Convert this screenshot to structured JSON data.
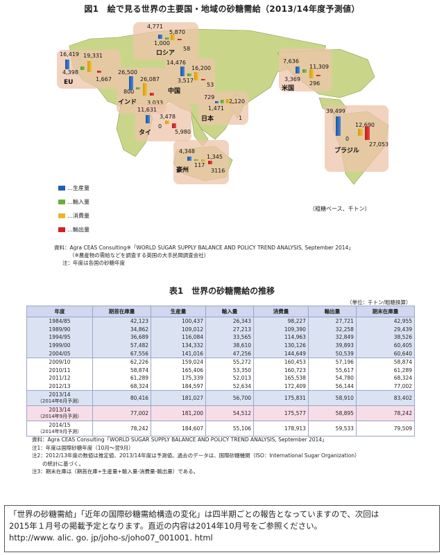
{
  "figure": {
    "title": "図1　絵で見る世界の主要国・地域の砂糖需給（2013/14年度予測値）",
    "unit_note": "（粗糖ベース、千トン）",
    "legend": [
      {
        "label": "…生産量",
        "color": "#1f5fb8"
      },
      {
        "label": "…輸入量",
        "color": "#6aae3c"
      },
      {
        "label": "…消費量",
        "color": "#f0b429"
      },
      {
        "label": "…輸出量",
        "color": "#d62020"
      }
    ],
    "regions": [
      {
        "name": "EU",
        "production": "16,419",
        "imports": "4,398",
        "consumption": "19,331",
        "exports": "1,667"
      },
      {
        "name": "ロシア",
        "production": "4,771",
        "imports": "1,000",
        "consumption": "5,870",
        "exports": "58"
      },
      {
        "name": "インド",
        "production": "26,500",
        "imports": "800",
        "consumption": "26,087",
        "exports": "3,033"
      },
      {
        "name": "中国",
        "production": "14,476",
        "imports": "3,517",
        "consumption": "16,200",
        "exports": "53"
      },
      {
        "name": "タイ",
        "production": "11,631",
        "imports": "0",
        "consumption": "3,478",
        "exports": "5,980"
      },
      {
        "name": "日本",
        "production": "729",
        "imports": "1,471",
        "consumption": "2,120",
        "exports": "1"
      },
      {
        "name": "豪州",
        "production": "4,348",
        "imports": "117",
        "consumption": "1,345",
        "exports": "3116"
      },
      {
        "name": "米国",
        "production": "7,636",
        "imports": "3,369",
        "consumption": "11,309",
        "exports": "296"
      },
      {
        "name": "ブラジル",
        "production": "39,499",
        "imports": "0",
        "consumption": "12,690",
        "exports": "27,053"
      }
    ],
    "source_lines": [
      "資料：Agra CEAS Consulting※「WORLD SUGAR SUPPLY BALANCE AND POLICY TREND ANALYSIS, September 2014」",
      "（※農産物の需給などを調査する英国の大手民間調査会社）",
      "注：年度は各国の砂糖年度"
    ]
  },
  "table": {
    "title": "表1　世界の砂糖需給の推移",
    "unit": "（単位：千トン/粗糖換算）",
    "headers": [
      "年度",
      "期首在庫量",
      "生産量",
      "輸入量",
      "消費量",
      "輸出量",
      "期末在庫量"
    ],
    "rows": [
      {
        "year": "1984/85",
        "year2": "",
        "vals": [
          "42,123",
          "100,437",
          "26,343",
          "98,227",
          "27,721",
          "42,955"
        ]
      },
      {
        "year": "1989/90",
        "year2": "",
        "vals": [
          "34,862",
          "109,012",
          "27,213",
          "109,390",
          "32,258",
          "29,439"
        ]
      },
      {
        "year": "1994/95",
        "year2": "",
        "vals": [
          "36,689",
          "116,084",
          "33,565",
          "114,963",
          "32,849",
          "38,526"
        ]
      },
      {
        "year": "1999/00",
        "year2": "",
        "vals": [
          "57,482",
          "134,332",
          "38,610",
          "130,126",
          "39,893",
          "60,405"
        ]
      },
      {
        "year": "2004/05",
        "year2": "",
        "vals": [
          "67,556",
          "141,016",
          "47,256",
          "144,649",
          "50,539",
          "60,640"
        ]
      },
      {
        "year": "2009/10",
        "year2": "",
        "vals": [
          "62,226",
          "159,024",
          "55,272",
          "160,453",
          "57,196",
          "58,874"
        ]
      },
      {
        "year": "2010/11",
        "year2": "",
        "vals": [
          "58,874",
          "165,406",
          "53,350",
          "160,723",
          "55,617",
          "61,289"
        ]
      },
      {
        "year": "2011/12",
        "year2": "",
        "vals": [
          "61,289",
          "175,339",
          "52,013",
          "165,538",
          "54,780",
          "68,324"
        ]
      },
      {
        "year": "2012/13",
        "year2": "",
        "vals": [
          "68,324",
          "184,597",
          "52,634",
          "172,409",
          "56,144",
          "77,002"
        ]
      },
      {
        "year": "2013/14",
        "year2": "（2014年6月予測）",
        "vals": [
          "80,416",
          "181,027",
          "56,700",
          "175,831",
          "58,910",
          "83,402"
        ]
      },
      {
        "year": "2013/14",
        "year2": "（2014年9月予測）",
        "vals": [
          "77,002",
          "181,200",
          "54,512",
          "175,577",
          "58,895",
          "78,242"
        ]
      },
      {
        "year": "2014/15",
        "year2": "（2014年9月予測）",
        "vals": [
          "78,242",
          "184,607",
          "55,106",
          "178,913",
          "59,533",
          "79,509"
        ]
      }
    ],
    "source_lines": [
      "資料：Agra CEAS Consulting「WORLD SUGAR SUPPLY BALANCE AND POLICY TREND ANALYSIS, September 2014」",
      "注1：年度は国際砂糖年度（10月～翌9月）",
      "注2：2012/13年度の数値は推定値、2013/14年度は予測値。過去のデータは、国際砂糖機関（ISO：International Sugar Organization）",
      "　　の統計に基づく。",
      "注3：期末在庫は（期首在庫+生産量+輸入量-消費量-輸出量）である。"
    ]
  },
  "notice": {
    "line1": "「世界の砂糖需給」「近年の国際砂糖需給構造の変化」は四半期ごとの報告となっていますので、次回は",
    "line2": "2015年１月号の掲載予定となります。直近の内容は2014年10月号をご参照ください。",
    "url": "http://www. alic. go. jp/joho-s/joho07_001001. html"
  }
}
